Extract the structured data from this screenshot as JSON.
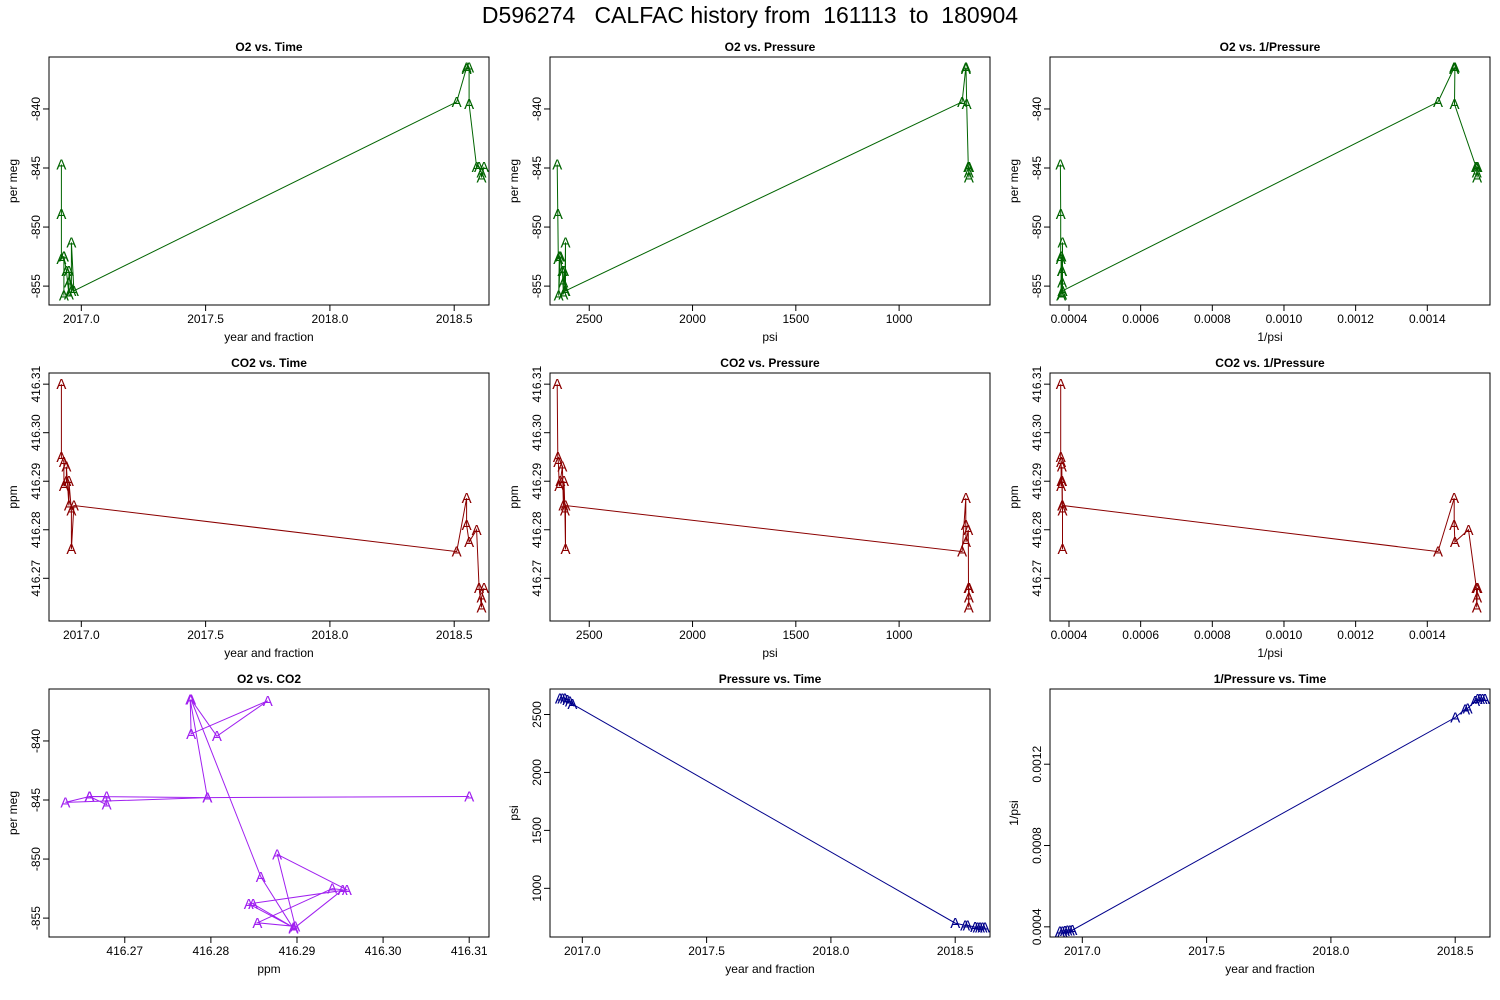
{
  "page": {
    "title": "D596274   CALFAC history from  161113  to  180904"
  },
  "chart_data": [
    {
      "id": "o2-time",
      "type": "scatter",
      "marker": "A",
      "color": "#006400",
      "title": "O2 vs. Time",
      "xlabel": "year and fraction",
      "ylabel": "per meg",
      "xlim": [
        2016.87,
        2018.64
      ],
      "ylim": [
        -856.6,
        -835.6
      ],
      "xticks": [
        2017.0,
        2017.5,
        2018.0,
        2018.5
      ],
      "xtick_labels": [
        "2017.0",
        "2017.5",
        "2018.0",
        "2018.5"
      ],
      "yticks": [
        -840,
        -845,
        -850,
        -855
      ],
      "ytick_labels": [
        "-840",
        "-845",
        "-850",
        "-855"
      ],
      "x": [
        2016.92,
        2016.92,
        2016.92,
        2016.93,
        2016.93,
        2016.93,
        2016.94,
        2016.95,
        2016.95,
        2016.95,
        2016.96,
        2016.96,
        2016.97,
        2018.51,
        2018.55,
        2018.55,
        2018.56,
        2018.56,
        2018.59,
        2018.6,
        2018.61,
        2018.61,
        2018.62
      ],
      "y": [
        -844.7,
        -848.9,
        -852.7,
        -852.5,
        -855.8,
        -852.5,
        -853.7,
        -855.7,
        -854.7,
        -853.7,
        -855.4,
        -851.3,
        -855.4,
        -839.4,
        -836.5,
        -836.6,
        -836.5,
        -839.6,
        -844.9,
        -844.9,
        -845.4,
        -845.8,
        -844.9
      ]
    },
    {
      "id": "o2-pressure",
      "type": "scatter",
      "marker": "A",
      "color": "#006400",
      "title": "O2 vs. Pressure",
      "xlabel": "psi",
      "ylabel": "per meg",
      "xlim": [
        2690,
        560
      ],
      "ylim": [
        -856.6,
        -835.6
      ],
      "xticks": [
        2500,
        2000,
        1500,
        1000
      ],
      "xtick_labels": [
        "2500",
        "2000",
        "1500",
        "1000"
      ],
      "yticks": [
        -840,
        -845,
        -850,
        -855
      ],
      "ytick_labels": [
        "-840",
        "-845",
        "-850",
        "-855"
      ],
      "x": [
        2655,
        2652,
        2650,
        2645,
        2648,
        2640,
        2630,
        2625,
        2625,
        2622,
        2618,
        2615,
        2615,
        695,
        677,
        677,
        676,
        673,
        665,
        664,
        663,
        662,
        661
      ],
      "y": [
        -844.7,
        -848.9,
        -852.7,
        -852.5,
        -855.8,
        -852.5,
        -853.7,
        -855.7,
        -854.7,
        -853.7,
        -855.4,
        -851.3,
        -855.4,
        -839.4,
        -836.5,
        -836.6,
        -836.5,
        -839.6,
        -844.9,
        -844.9,
        -845.4,
        -845.8,
        -844.9
      ]
    },
    {
      "id": "o2-invpressure",
      "type": "scatter",
      "marker": "A",
      "color": "#006400",
      "title": "O2 vs. 1/Pressure",
      "xlabel": "1/psi",
      "ylabel": "per meg",
      "xlim": [
        0.000347,
        0.001575
      ],
      "ylim": [
        -856.6,
        -835.6
      ],
      "xticks": [
        0.0004,
        0.0006,
        0.0008,
        0.001,
        0.0012,
        0.0014
      ],
      "xtick_labels": [
        "0.0004",
        "0.0006",
        "0.0008",
        "0.0010",
        "0.0012",
        "0.0014"
      ],
      "yticks": [
        -840,
        -845,
        -850,
        -855
      ],
      "ytick_labels": [
        "-840",
        "-845",
        "-850",
        "-855"
      ],
      "x": [
        0.000376,
        0.000377,
        0.000377,
        0.000378,
        0.000378,
        0.000379,
        0.00038,
        0.000381,
        0.000381,
        0.000381,
        0.000382,
        0.000382,
        0.000382,
        0.00143,
        0.001475,
        0.001475,
        0.001477,
        0.001476,
        0.001536,
        0.001537,
        0.001538,
        0.001539,
        0.00154
      ],
      "y": [
        -844.7,
        -848.9,
        -852.7,
        -852.5,
        -855.8,
        -852.5,
        -853.7,
        -855.7,
        -854.7,
        -853.7,
        -855.4,
        -851.3,
        -855.4,
        -839.4,
        -836.5,
        -836.6,
        -836.5,
        -839.6,
        -844.9,
        -844.9,
        -845.4,
        -845.8,
        -844.9
      ]
    },
    {
      "id": "co2-time",
      "type": "scatter",
      "marker": "A",
      "color": "#8b0000",
      "title": "CO2 vs. Time",
      "xlabel": "year and fraction",
      "ylabel": "ppm",
      "xlim": [
        2016.87,
        2018.64
      ],
      "ylim": [
        416.2612,
        416.3123
      ],
      "xticks": [
        2017.0,
        2017.5,
        2018.0,
        2018.5
      ],
      "xtick_labels": [
        "2017.0",
        "2017.5",
        "2018.0",
        "2018.5"
      ],
      "yticks": [
        416.27,
        416.28,
        416.29,
        416.3,
        416.31
      ],
      "ytick_labels": [
        "416.27",
        "416.28",
        "416.29",
        "416.30",
        "416.31"
      ],
      "x": [
        2016.92,
        2016.92,
        2016.93,
        2016.93,
        2016.94,
        2016.94,
        2016.95,
        2016.95,
        2016.96,
        2016.96,
        2016.97,
        2018.51,
        2018.55,
        2018.55,
        2018.56,
        2018.59,
        2018.6,
        2018.61,
        2018.61,
        2018.62
      ],
      "y": [
        416.31,
        416.295,
        416.294,
        416.289,
        416.29,
        416.293,
        416.285,
        416.29,
        416.284,
        416.276,
        416.285,
        416.2755,
        416.2865,
        416.281,
        416.2775,
        416.28,
        416.268,
        416.264,
        416.266,
        416.268
      ]
    },
    {
      "id": "co2-pressure",
      "type": "scatter",
      "marker": "A",
      "color": "#8b0000",
      "title": "CO2 vs. Pressure",
      "xlabel": "psi",
      "ylabel": "ppm",
      "xlim": [
        2690,
        560
      ],
      "ylim": [
        416.2612,
        416.3123
      ],
      "xticks": [
        2500,
        2000,
        1500,
        1000
      ],
      "xtick_labels": [
        "2500",
        "2000",
        "1500",
        "1000"
      ],
      "yticks": [
        416.27,
        416.28,
        416.29,
        416.3,
        416.31
      ],
      "ytick_labels": [
        "416.27",
        "416.28",
        "416.29",
        "416.30",
        "416.31"
      ],
      "x": [
        2655,
        2652,
        2650,
        2645,
        2640,
        2630,
        2625,
        2622,
        2618,
        2615,
        2615,
        695,
        677,
        677,
        676,
        665,
        664,
        663,
        662,
        661
      ],
      "y": [
        416.31,
        416.295,
        416.294,
        416.289,
        416.29,
        416.293,
        416.285,
        416.29,
        416.284,
        416.276,
        416.285,
        416.2755,
        416.2865,
        416.281,
        416.2775,
        416.28,
        416.268,
        416.264,
        416.266,
        416.268
      ]
    },
    {
      "id": "co2-invpressure",
      "type": "scatter",
      "marker": "A",
      "color": "#8b0000",
      "title": "CO2 vs. 1/Pressure",
      "xlabel": "1/psi",
      "ylabel": "ppm",
      "xlim": [
        0.000347,
        0.001575
      ],
      "ylim": [
        416.2612,
        416.3123
      ],
      "xticks": [
        0.0004,
        0.0006,
        0.0008,
        0.001,
        0.0012,
        0.0014
      ],
      "xtick_labels": [
        "0.0004",
        "0.0006",
        "0.0008",
        "0.0010",
        "0.0012",
        "0.0014"
      ],
      "yticks": [
        416.27,
        416.28,
        416.29,
        416.3,
        416.31
      ],
      "ytick_labels": [
        "416.27",
        "416.28",
        "416.29",
        "416.30",
        "416.31"
      ],
      "x": [
        0.000377,
        0.000377,
        0.000378,
        0.000378,
        0.000379,
        0.00038,
        0.000381,
        0.000381,
        0.000382,
        0.000382,
        0.000382,
        0.00143,
        0.001475,
        0.001475,
        0.001477,
        0.001515,
        0.001537,
        0.001538,
        0.001539,
        0.00154
      ],
      "y": [
        416.31,
        416.295,
        416.294,
        416.289,
        416.29,
        416.293,
        416.285,
        416.29,
        416.284,
        416.276,
        416.285,
        416.2755,
        416.2865,
        416.281,
        416.2775,
        416.28,
        416.268,
        416.264,
        416.266,
        416.268
      ]
    },
    {
      "id": "o2-co2",
      "type": "scatter",
      "marker": "A",
      "color": "#a020f0",
      "title": "O2 vs. CO2",
      "xlabel": "ppm",
      "ylabel": "per meg",
      "xlim": [
        416.2612,
        416.3123
      ],
      "ylim": [
        -856.6,
        -835.6
      ],
      "xticks": [
        416.27,
        416.28,
        416.29,
        416.3,
        416.31
      ],
      "xtick_labels": [
        "416.27",
        "416.28",
        "416.29",
        "416.30",
        "416.31"
      ],
      "yticks": [
        -840,
        -845,
        -850,
        -855
      ],
      "ytick_labels": [
        "-840",
        "-845",
        "-850",
        "-855"
      ],
      "x": [
        416.31,
        416.2796,
        416.2631,
        416.2659,
        416.2679,
        416.2679,
        416.2659,
        416.2796,
        416.2776,
        416.2777,
        416.2866,
        416.2807,
        416.2777,
        416.2858,
        416.2896,
        416.2953,
        416.2941,
        416.2854,
        416.2898,
        416.2877,
        416.2958,
        416.2844,
        416.2896,
        416.2849
      ],
      "y": [
        -844.7,
        -844.8,
        -845.2,
        -844.7,
        -844.7,
        -845.4,
        -844.7,
        -844.8,
        -836.5,
        -839.4,
        -836.6,
        -839.6,
        -836.5,
        -851.5,
        -855.9,
        -852.6,
        -852.5,
        -855.4,
        -855.7,
        -849.6,
        -852.6,
        -853.8,
        -855.8,
        -853.8
      ]
    },
    {
      "id": "pressure-time",
      "type": "scatter",
      "marker": "A",
      "color": "#00008b",
      "title": "Pressure vs. Time",
      "xlabel": "year and fraction",
      "ylabel": "psi",
      "xlim": [
        2016.87,
        2018.64
      ],
      "ylim": [
        580,
        2720
      ],
      "xticks": [
        2017.0,
        2017.5,
        2018.0,
        2018.5
      ],
      "xtick_labels": [
        "2017.0",
        "2017.5",
        "2018.0",
        "2018.5"
      ],
      "yticks": [
        1000,
        1500,
        2000,
        2500
      ],
      "ytick_labels": [
        "1000",
        "1500",
        "2000",
        "2500"
      ],
      "x": [
        2016.91,
        2016.92,
        2016.93,
        2016.94,
        2016.95,
        2016.96,
        2018.5,
        2018.54,
        2018.55,
        2018.58,
        2018.59,
        2018.6,
        2018.61,
        2018.62
      ],
      "y": [
        2640,
        2640,
        2640,
        2625,
        2610,
        2590,
        700,
        680,
        680,
        665,
        660,
        660,
        660,
        660
      ]
    },
    {
      "id": "invpressure-time",
      "type": "scatter",
      "marker": "A",
      "color": "#00008b",
      "title": "1/Pressure vs. Time",
      "xlabel": "year and fraction",
      "ylabel": "1/psi",
      "xlim": [
        2016.87,
        2018.64
      ],
      "ylim": [
        0.00035,
        0.00157
      ],
      "xticks": [
        2017.0,
        2017.5,
        2018.0,
        2018.5
      ],
      "xtick_labels": [
        "2017.0",
        "2017.5",
        "2018.0",
        "2018.5"
      ],
      "yticks": [
        0.0004,
        0.0008,
        0.0012
      ],
      "ytick_labels": [
        "0.0004",
        "0.0008",
        "0.0012"
      ],
      "x": [
        2016.91,
        2016.92,
        2016.93,
        2016.94,
        2016.95,
        2016.96,
        2018.5,
        2018.54,
        2018.55,
        2018.58,
        2018.59,
        2018.6,
        2018.61,
        2018.62
      ],
      "y": [
        0.000378,
        0.000378,
        0.000379,
        0.000381,
        0.000381,
        0.000384,
        0.00143,
        0.00147,
        0.001475,
        0.00151,
        0.00152,
        0.00152,
        0.00152,
        0.00152
      ]
    }
  ]
}
